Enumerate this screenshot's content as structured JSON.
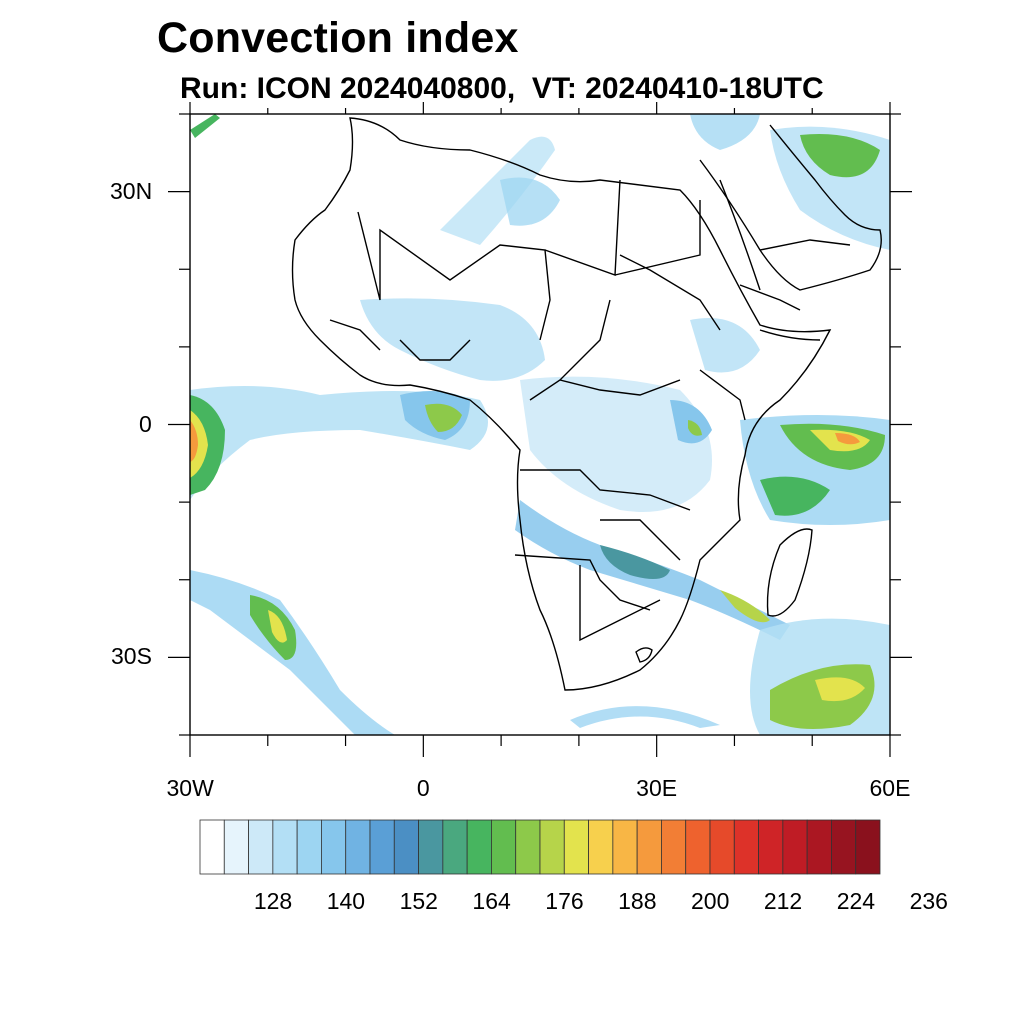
{
  "title": "Convection index",
  "subtitle": "Run: ICON 2024040800,  VT: 20240410-18UTC",
  "axes": {
    "lon_ticks": [
      {
        "value": -30,
        "label": "30W"
      },
      {
        "value": 0,
        "label": "0"
      },
      {
        "value": 30,
        "label": "30E"
      },
      {
        "value": 60,
        "label": "60E"
      }
    ],
    "lat_ticks": [
      {
        "value": 30,
        "label": "30N"
      },
      {
        "value": 0,
        "label": "0"
      },
      {
        "value": -30,
        "label": "30S"
      }
    ],
    "lon_range": [
      -30,
      60
    ],
    "lat_range": [
      -40,
      40
    ]
  },
  "colorbar": {
    "levels": [
      "128",
      "140",
      "152",
      "164",
      "176",
      "188",
      "200",
      "212",
      "224",
      "236"
    ],
    "colors": [
      "#ffffff",
      "#e6f4fc",
      "#cde9f8",
      "#b3dff5",
      "#9dd5f2",
      "#86c6ec",
      "#70b3e3",
      "#5a9fd6",
      "#4b8fc4",
      "#4a97a0",
      "#4aa87f",
      "#47b55f",
      "#62bd4f",
      "#8dc94a",
      "#b6d44a",
      "#e3e34d",
      "#f7d04d",
      "#f8b645",
      "#f59a3d",
      "#f27e35",
      "#ee622e",
      "#e64a2a",
      "#dd3229",
      "#cf2427",
      "#bf1c25",
      "#ab1722",
      "#971420",
      "#8a111d"
    ]
  },
  "map": {
    "field": "convection index",
    "ocean_color": "#ffffff",
    "border_color": "#000000"
  }
}
